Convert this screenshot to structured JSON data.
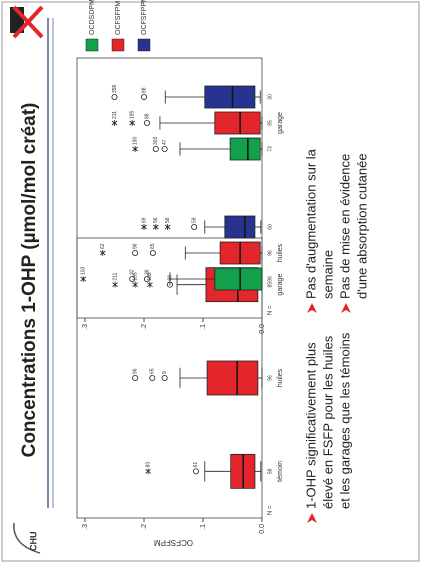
{
  "title": "Concentrations 1-OHP (µmol/mol créat)",
  "logo_text": "CHU",
  "bullets_left": [
    {
      "lines": [
        "1-OHP significativement plus",
        "élevé en FSFP pour les huiles",
        "et les garages que les témoins"
      ]
    }
  ],
  "bullets_right": [
    {
      "lines": [
        "Pas d'augmentation sur la",
        "semaine"
      ]
    },
    {
      "lines": [
        "Pas de mise en évidence",
        "d'une absorption cutanée"
      ]
    }
  ],
  "chart_data": [
    {
      "type": "box",
      "ylabel": "OCFSFPM",
      "n_label": "N =",
      "ylim": [
        0,
        0.3
      ],
      "yticks": [
        {
          "value": 0,
          "label": "0.0"
        },
        {
          "value": 0.1,
          "label": ".1"
        },
        {
          "value": 0.2,
          "label": ".2"
        },
        {
          "value": 0.3,
          "label": ".3"
        }
      ],
      "categories": [
        "témoin",
        "huiles",
        "garage"
      ],
      "series": [
        {
          "color": "#e3262b",
          "q1": [
            0.012,
            0.007,
            0.007
          ],
          "median": [
            0.032,
            0.042,
            0.041
          ],
          "q3": [
            0.053,
            0.093,
            0.095
          ],
          "whisker_low": [
            0.002,
            0,
            0
          ],
          "whisker_high": [
            0.097,
            0.139,
            0.144
          ],
          "n": [
            58,
            96,
            85
          ],
          "outliers": [
            [
              {
                "value": 0.112,
                "label": "61",
                "marker": "circle"
              },
              {
                "value": 0.193,
                "label": "83",
                "marker": "star"
              }
            ],
            [
              {
                "value": 0.165,
                "label": "9",
                "marker": "circle"
              },
              {
                "value": 0.186,
                "label": "65",
                "marker": "circle"
              },
              {
                "value": 0.215,
                "label": "96",
                "marker": "circle"
              }
            ],
            [
              {
                "value": 0.156,
                "label": "88",
                "marker": "circle"
              },
              {
                "value": 0.19,
                "label": "199",
                "marker": "star"
              },
              {
                "value": 0.215,
                "label": "195",
                "marker": "star"
              },
              {
                "value": 0.249,
                "label": "211",
                "marker": "star"
              }
            ]
          ]
        }
      ]
    },
    {
      "type": "box",
      "n_label": "N =",
      "ylim": [
        0,
        0.3
      ],
      "yticks": [
        {
          "value": 0,
          "label": "0.0"
        },
        {
          "value": 0.1,
          "label": ".1"
        },
        {
          "value": 0.2,
          "label": ".2"
        },
        {
          "value": 0.3,
          "label": ".3"
        }
      ],
      "categories": [
        "huiles",
        "garage"
      ],
      "series": [
        {
          "name": "OCDSDPM",
          "color": "#12a04b",
          "q1": [
            0,
            0.003
          ],
          "median": [
            0.037,
            0.024
          ],
          "q3": [
            0.08,
            0.054
          ],
          "whisker_low": [
            0,
            0
          ],
          "whisker_high": [
            0.156,
            0.139
          ],
          "n": [
            98,
            73
          ],
          "outliers": [
            [
              {
                "value": 0.195,
                "label": "36",
                "marker": "circle"
              },
              {
                "value": 0.22,
                "label": "32",
                "marker": "circle"
              },
              {
                "value": 0.303,
                "label": "103",
                "marker": "star"
              }
            ],
            [
              {
                "value": 0.165,
                "label": "47",
                "marker": "circle"
              },
              {
                "value": 0.18,
                "label": "303",
                "marker": "circle"
              },
              {
                "value": 0.215,
                "label": "190",
                "marker": "star"
              }
            ]
          ]
        },
        {
          "name": "OCFSFPM",
          "color": "#e3262b",
          "q1": [
            0.003,
            0.003
          ],
          "median": [
            0.037,
            0.037
          ],
          "q3": [
            0.071,
            0.08
          ],
          "whisker_low": [
            0,
            0
          ],
          "whisker_high": [
            0.13,
            0.173
          ],
          "n": [
            96,
            85
          ],
          "outliers": [
            [
              {
                "value": 0.185,
                "label": "65",
                "marker": "circle"
              },
              {
                "value": 0.215,
                "label": "96",
                "marker": "circle"
              },
              {
                "value": 0.27,
                "label": "62",
                "marker": "star"
              }
            ],
            [
              {
                "value": 0.195,
                "label": "88",
                "marker": "circle"
              },
              {
                "value": 0.22,
                "label": "195",
                "marker": "star"
              },
              {
                "value": 0.25,
                "label": "211",
                "marker": "star"
              }
            ]
          ]
        },
        {
          "name": "OCFSFPPM",
          "color": "#26348f",
          "q1": [
            0.012,
            0.012
          ],
          "median": [
            0.029,
            0.05
          ],
          "q3": [
            0.063,
            0.097
          ],
          "whisker_low": [
            0.002,
            0.003
          ],
          "whisker_high": [
            0.097,
            0.164
          ],
          "n": [
            60,
            30
          ],
          "outliers": [
            [
              {
                "value": 0.115,
                "label": "59",
                "marker": "circle"
              },
              {
                "value": 0.16,
                "label": "58",
                "marker": "star"
              },
              {
                "value": 0.18,
                "label": "56",
                "marker": "star"
              },
              {
                "value": 0.2,
                "label": "69",
                "marker": "star"
              }
            ],
            [
              {
                "value": 0.2,
                "label": "88",
                "marker": "circle"
              },
              {
                "value": 0.25,
                "label": "359",
                "marker": "circle"
              }
            ]
          ]
        }
      ]
    }
  ]
}
